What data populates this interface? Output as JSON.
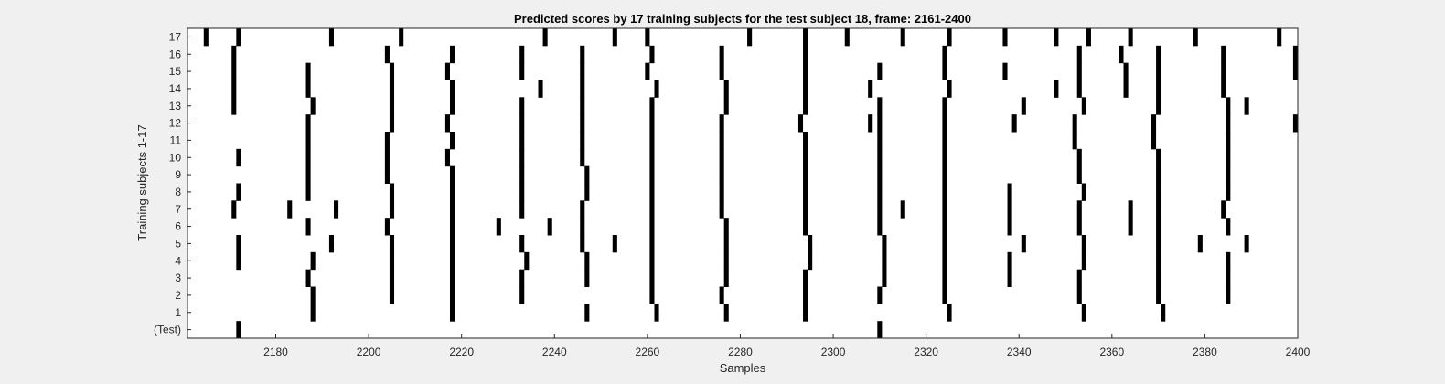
{
  "chart_data": {
    "type": "heatmap",
    "title": "Predicted scores by 17 training subjects for the test subject 18, frame: 2161-2400",
    "xlabel": "Samples",
    "ylabel": "Training subjects 1-17",
    "xlim": [
      2161,
      2400
    ],
    "xticks": [
      2180,
      2200,
      2220,
      2240,
      2260,
      2280,
      2300,
      2320,
      2340,
      2360,
      2380,
      2400
    ],
    "rows": [
      "(Test)",
      "1",
      "2",
      "3",
      "4",
      "5",
      "6",
      "7",
      "8",
      "9",
      "10",
      "11",
      "12",
      "13",
      "14",
      "15",
      "16",
      "17"
    ],
    "mark_color": "#000000",
    "background_color": "#ffffff",
    "marks": [
      {
        "row": "(Test)",
        "x": [
          2172,
          2310
        ]
      },
      {
        "row": "1",
        "x": [
          2188,
          2218,
          2247,
          2262,
          2277,
          2294,
          2325,
          2354,
          2371
        ]
      },
      {
        "row": "2",
        "x": [
          2188,
          2205,
          2218,
          2233,
          2261,
          2276,
          2294,
          2310,
          2324,
          2353,
          2370,
          2385
        ]
      },
      {
        "row": "3",
        "x": [
          2187,
          2205,
          2218,
          2233,
          2247,
          2261,
          2277,
          2294,
          2311,
          2324,
          2338,
          2353,
          2370,
          2385
        ]
      },
      {
        "row": "4",
        "x": [
          2172,
          2188,
          2205,
          2218,
          2234,
          2247,
          2261,
          2277,
          2295,
          2311,
          2324,
          2338,
          2354,
          2370,
          2385
        ]
      },
      {
        "row": "5",
        "x": [
          2172,
          2192,
          2205,
          2218,
          2233,
          2246,
          2253,
          2261,
          2277,
          2295,
          2311,
          2324,
          2341,
          2354,
          2370,
          2379,
          2389
        ]
      },
      {
        "row": "6",
        "x": [
          2187,
          2204,
          2218,
          2228,
          2239,
          2246,
          2261,
          2277,
          2294,
          2310,
          2324,
          2338,
          2353,
          2364,
          2370,
          2385
        ]
      },
      {
        "row": "7",
        "x": [
          2171,
          2183,
          2193,
          2205,
          2218,
          2233,
          2246,
          2261,
          2276,
          2294,
          2310,
          2315,
          2324,
          2338,
          2353,
          2364,
          2370,
          2384
        ]
      },
      {
        "row": "8",
        "x": [
          2172,
          2187,
          2205,
          2218,
          2233,
          2247,
          2261,
          2276,
          2294,
          2310,
          2324,
          2338,
          2354,
          2370,
          2385
        ]
      },
      {
        "row": "9",
        "x": [
          2187,
          2204,
          2218,
          2233,
          2247,
          2261,
          2276,
          2294,
          2310,
          2324,
          2353,
          2370,
          2385
        ]
      },
      {
        "row": "10",
        "x": [
          2172,
          2187,
          2204,
          2217,
          2233,
          2246,
          2261,
          2276,
          2294,
          2310,
          2324,
          2353,
          2370,
          2385
        ]
      },
      {
        "row": "11",
        "x": [
          2187,
          2204,
          2218,
          2233,
          2246,
          2261,
          2276,
          2294,
          2310,
          2324,
          2352,
          2369,
          2385
        ]
      },
      {
        "row": "12",
        "x": [
          2187,
          2205,
          2217,
          2233,
          2246,
          2261,
          2276,
          2293,
          2308,
          2310,
          2324,
          2339,
          2352,
          2369,
          2385,
          2400
        ]
      },
      {
        "row": "13",
        "x": [
          2171,
          2188,
          2205,
          2218,
          2233,
          2246,
          2261,
          2277,
          2294,
          2310,
          2324,
          2341,
          2354,
          2370,
          2385,
          2389
        ]
      },
      {
        "row": "14",
        "x": [
          2171,
          2187,
          2205,
          2218,
          2237,
          2246,
          2262,
          2277,
          2294,
          2308,
          2325,
          2348,
          2353,
          2363,
          2370,
          2384
        ]
      },
      {
        "row": "15",
        "x": [
          2171,
          2187,
          2205,
          2217,
          2233,
          2246,
          2260,
          2276,
          2294,
          2310,
          2324,
          2337,
          2353,
          2363,
          2370,
          2384,
          2400
        ]
      },
      {
        "row": "16",
        "x": [
          2171,
          2204,
          2218,
          2233,
          2246,
          2261,
          2276,
          2294,
          2324,
          2353,
          2362,
          2370,
          2384,
          2400
        ]
      },
      {
        "row": "17",
        "x": [
          2165,
          2172,
          2192,
          2207,
          2238,
          2253,
          2260,
          2282,
          2294,
          2303,
          2315,
          2325,
          2337,
          2348,
          2355,
          2364,
          2378,
          2396
        ]
      }
    ]
  }
}
